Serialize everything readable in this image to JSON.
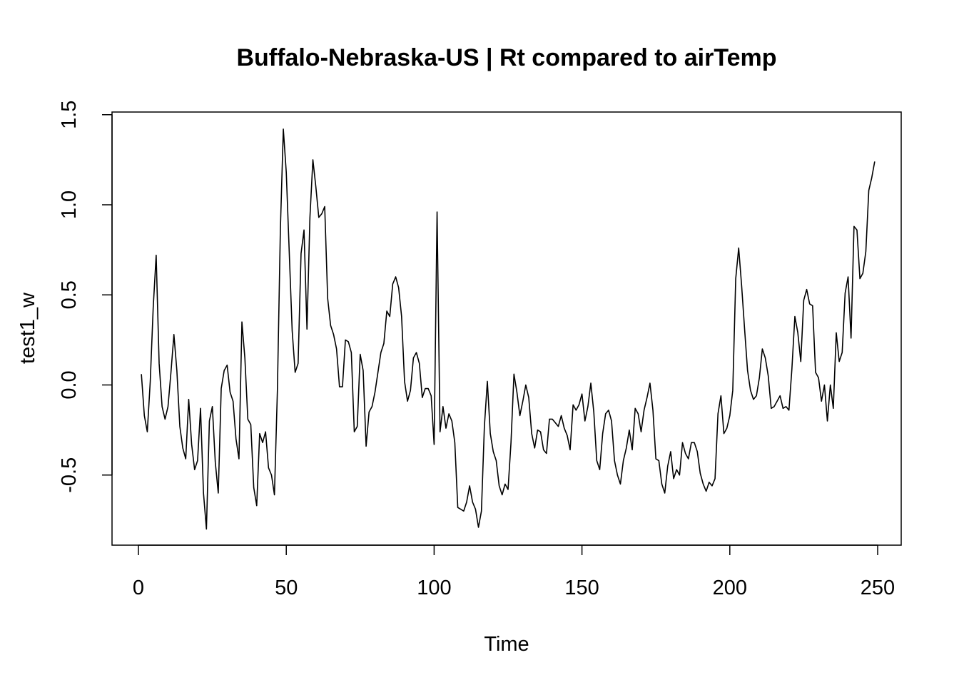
{
  "chart_data": {
    "type": "line",
    "title": "Buffalo-Nebraska-US | Rt compared to airTemp",
    "xlabel": "Time",
    "ylabel": "test1_w",
    "xlim": [
      0,
      250
    ],
    "ylim": [
      -0.8,
      1.5
    ],
    "x_ticks": [
      "0",
      "50",
      "100",
      "150",
      "200",
      "250"
    ],
    "y_ticks": [
      "-0.5",
      "0.0",
      "0.5",
      "1.0",
      "1.5"
    ],
    "x_start": 1,
    "grid": false,
    "line_color": "#000000",
    "series": [
      {
        "values": [
          0.06,
          -0.17,
          -0.26,
          0.02,
          0.43,
          0.72,
          0.12,
          -0.12,
          -0.19,
          -0.12,
          0.07,
          0.28,
          0.08,
          -0.23,
          -0.35,
          -0.41,
          -0.08,
          -0.33,
          -0.47,
          -0.42,
          -0.13,
          -0.6,
          -0.8,
          -0.2,
          -0.12,
          -0.43,
          -0.6,
          -0.02,
          0.08,
          0.11,
          -0.04,
          -0.09,
          -0.3,
          -0.41,
          0.35,
          0.15,
          -0.19,
          -0.22,
          -0.57,
          -0.67,
          -0.27,
          -0.32,
          -0.26,
          -0.46,
          -0.5,
          -0.61,
          -0.03,
          0.86,
          1.42,
          1.18,
          0.74,
          0.3,
          0.07,
          0.12,
          0.73,
          0.86,
          0.31,
          0.93,
          1.25,
          1.1,
          0.93,
          0.95,
          0.99,
          0.48,
          0.33,
          0.28,
          0.2,
          -0.01,
          -0.01,
          0.25,
          0.24,
          0.18,
          -0.26,
          -0.23,
          0.17,
          0.08,
          -0.34,
          -0.15,
          -0.12,
          -0.04,
          0.07,
          0.18,
          0.23,
          0.41,
          0.38,
          0.56,
          0.6,
          0.54,
          0.38,
          0.02,
          -0.09,
          -0.03,
          0.15,
          0.18,
          0.12,
          -0.07,
          -0.02,
          -0.02,
          -0.06,
          -0.33,
          0.96,
          -0.26,
          -0.12,
          -0.24,
          -0.16,
          -0.2,
          -0.32,
          -0.68,
          -0.69,
          -0.7,
          -0.65,
          -0.56,
          -0.65,
          -0.69,
          -0.79,
          -0.7,
          -0.23,
          0.02,
          -0.27,
          -0.37,
          -0.42,
          -0.56,
          -0.61,
          -0.55,
          -0.58,
          -0.32,
          0.06,
          -0.04,
          -0.17,
          -0.09,
          0.0,
          -0.07,
          -0.27,
          -0.35,
          -0.25,
          -0.26,
          -0.36,
          -0.38,
          -0.19,
          -0.19,
          -0.21,
          -0.23,
          -0.17,
          -0.24,
          -0.28,
          -0.36,
          -0.11,
          -0.14,
          -0.11,
          -0.05,
          -0.2,
          -0.12,
          0.01,
          -0.15,
          -0.42,
          -0.47,
          -0.27,
          -0.16,
          -0.14,
          -0.2,
          -0.42,
          -0.5,
          -0.55,
          -0.42,
          -0.35,
          -0.25,
          -0.36,
          -0.13,
          -0.16,
          -0.26,
          -0.14,
          -0.07,
          0.01,
          -0.14,
          -0.41,
          -0.42,
          -0.55,
          -0.6,
          -0.45,
          -0.37,
          -0.52,
          -0.47,
          -0.5,
          -0.32,
          -0.38,
          -0.41,
          -0.32,
          -0.32,
          -0.37,
          -0.49,
          -0.55,
          -0.59,
          -0.54,
          -0.56,
          -0.52,
          -0.16,
          -0.06,
          -0.27,
          -0.24,
          -0.17,
          -0.03,
          0.59,
          0.76,
          0.55,
          0.31,
          0.08,
          -0.03,
          -0.08,
          -0.06,
          0.04,
          0.2,
          0.15,
          0.05,
          -0.13,
          -0.12,
          -0.09,
          -0.06,
          -0.13,
          -0.12,
          -0.14,
          0.09,
          0.38,
          0.29,
          0.13,
          0.47,
          0.53,
          0.45,
          0.44,
          0.07,
          0.04,
          -0.09,
          0.0,
          -0.2,
          0.0,
          -0.13,
          0.29,
          0.13,
          0.18,
          0.51,
          0.6,
          0.26,
          0.88,
          0.86,
          0.59,
          0.62,
          0.74,
          1.08,
          1.15,
          1.24
        ]
      }
    ]
  }
}
